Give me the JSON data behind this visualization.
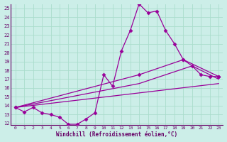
{
  "xlabel": "Windchill (Refroidissement éolien,°C)",
  "bg_color": "#cceee8",
  "line_color": "#990099",
  "grid_color": "#aaddcc",
  "axis_color": "#660066",
  "xlim": [
    -0.5,
    23.5
  ],
  "ylim": [
    11.8,
    25.5
  ],
  "yticks": [
    12,
    13,
    14,
    15,
    16,
    17,
    18,
    19,
    20,
    21,
    22,
    23,
    24,
    25
  ],
  "xticks": [
    0,
    1,
    2,
    3,
    4,
    5,
    6,
    7,
    8,
    9,
    10,
    11,
    12,
    13,
    14,
    15,
    16,
    17,
    18,
    19,
    20,
    21,
    22,
    23
  ],
  "series": [
    {
      "x": [
        0,
        1,
        2,
        3,
        4,
        5,
        6,
        7,
        8,
        9,
        10,
        11,
        12,
        13,
        14,
        15,
        16,
        17,
        18,
        19,
        20,
        21,
        22,
        23
      ],
      "y": [
        13.8,
        13.3,
        13.8,
        13.2,
        13.0,
        12.7,
        11.9,
        11.9,
        12.5,
        13.2,
        17.5,
        16.2,
        20.2,
        22.5,
        25.5,
        24.5,
        24.7,
        22.5,
        21.0,
        19.2,
        18.5,
        17.5,
        17.3,
        17.3
      ],
      "marker": "D",
      "markersize": 2.5,
      "lw": 0.9
    },
    {
      "x": [
        0,
        14,
        19,
        23
      ],
      "y": [
        13.8,
        17.5,
        19.2,
        17.3
      ],
      "marker": "D",
      "markersize": 2.5,
      "lw": 0.9
    },
    {
      "x": [
        0,
        14,
        20,
        23
      ],
      "y": [
        13.8,
        16.5,
        18.5,
        17.0
      ],
      "marker": null,
      "markersize": 0,
      "lw": 0.9
    },
    {
      "x": [
        0,
        23
      ],
      "y": [
        13.8,
        16.5
      ],
      "marker": null,
      "markersize": 0,
      "lw": 0.9
    }
  ]
}
